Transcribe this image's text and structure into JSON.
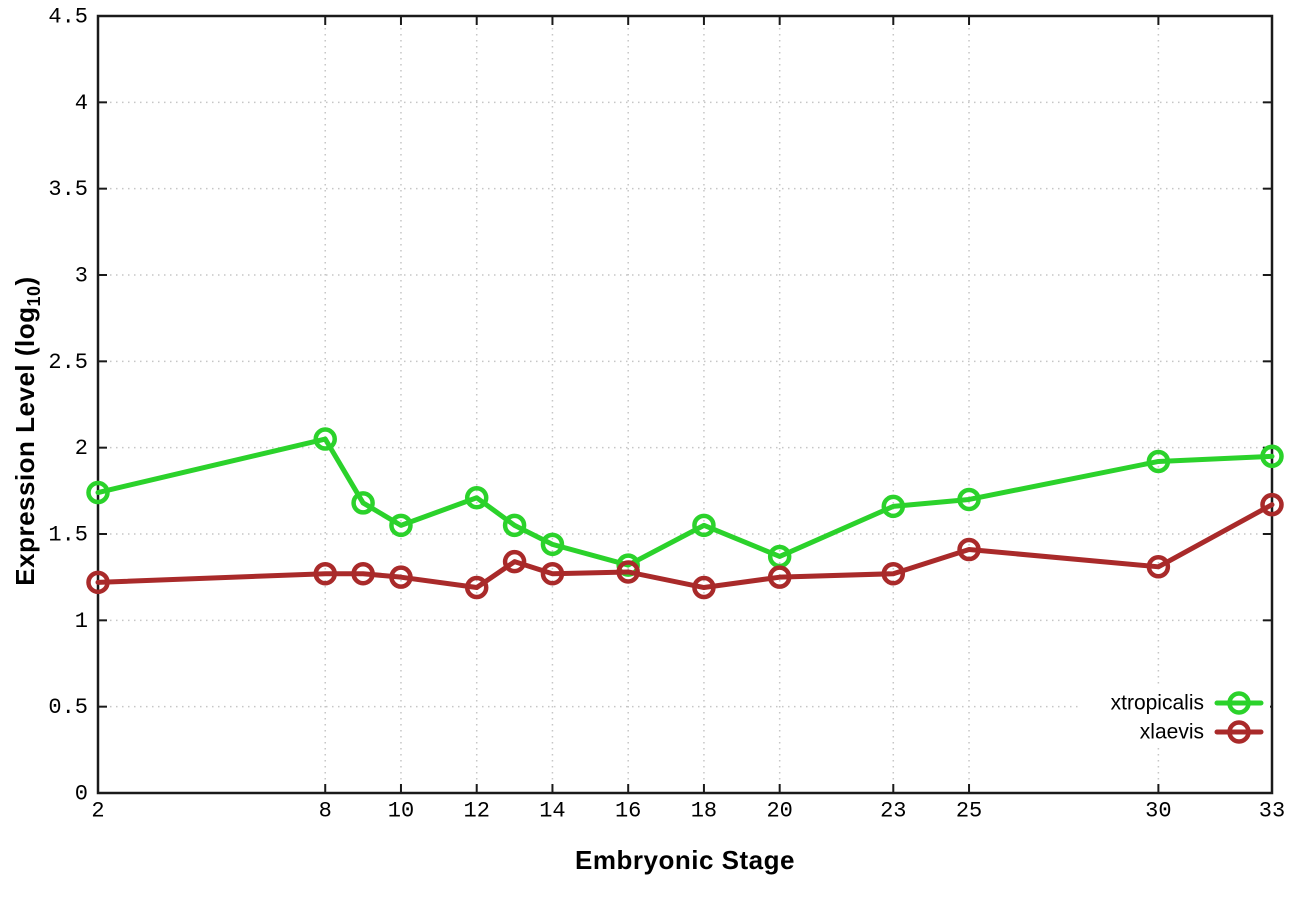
{
  "figure": {
    "xlabel": "Embryonic Stage",
    "ylabel_main": "Expression Level (log",
    "ylabel_sub": "10",
    "ylabel_close": ")",
    "background": "#ffffff",
    "border_color": "#1a1a1a",
    "grid_color": "#c6c6c6"
  },
  "chart_data": {
    "type": "line",
    "title": "",
    "xlabel": "Embryonic Stage",
    "ylabel": "Expression Level (log10)",
    "x": [
      2,
      8,
      9,
      10,
      12,
      13,
      14,
      16,
      18,
      20,
      23,
      25,
      30,
      33
    ],
    "xticks": [
      2,
      8,
      10,
      12,
      14,
      16,
      18,
      20,
      23,
      25,
      30,
      33
    ],
    "yticks": [
      0,
      0.5,
      1,
      1.5,
      2,
      2.5,
      3,
      3.5,
      4,
      4.5
    ],
    "xlim": [
      2,
      33
    ],
    "ylim": [
      0,
      4.5
    ],
    "grid": true,
    "legend_position": "right-lower",
    "marker": "open-circle",
    "series": [
      {
        "name": "xtropicalis",
        "color": "#2bd22b",
        "values": [
          1.74,
          2.05,
          1.68,
          1.55,
          1.71,
          1.55,
          1.44,
          1.32,
          1.55,
          1.37,
          1.66,
          1.7,
          1.92,
          1.95
        ]
      },
      {
        "name": "xlaevis",
        "color": "#a92a2a",
        "values": [
          1.22,
          1.27,
          1.27,
          1.25,
          1.19,
          1.34,
          1.27,
          1.28,
          1.19,
          1.25,
          1.27,
          1.41,
          1.31,
          1.67
        ]
      }
    ]
  }
}
